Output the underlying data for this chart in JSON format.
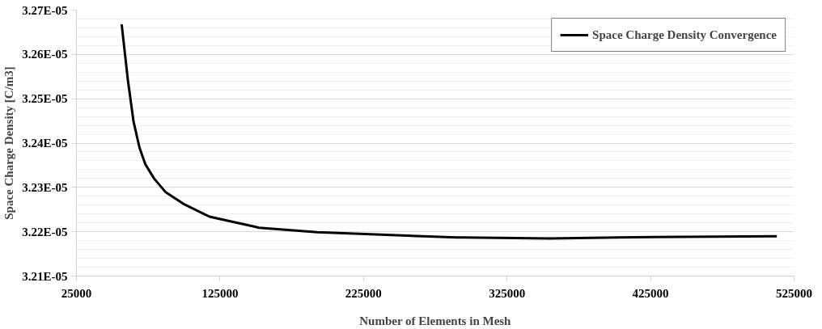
{
  "chart_data": {
    "type": "line",
    "xlabel": "Number of Elements in Mesh",
    "ylabel": "Space Charge Density [C/m3]",
    "series": [
      {
        "name": "Space Charge Density Convergence",
        "color": "#000000",
        "x": [
          56500,
          60800,
          64800,
          68900,
          73000,
          79100,
          87200,
          99400,
          117700,
          125800,
          148200,
          152200,
          192800,
          233500,
          290000,
          294500,
          355000,
          426600,
          513000
        ],
        "values": [
          3.2668e-05,
          3.2543e-05,
          3.2448e-05,
          3.239e-05,
          3.2352e-05,
          3.232e-05,
          3.2289e-05,
          3.2263e-05,
          3.2234e-05,
          3.2228e-05,
          3.2212e-05,
          3.2209e-05,
          3.2199e-05,
          3.2194e-05,
          3.2187e-05,
          3.2187e-05,
          3.2185e-05,
          3.2188e-05,
          3.219e-05
        ]
      }
    ],
    "xlim": [
      25000,
      525000
    ],
    "xticks": [
      25000,
      125000,
      225000,
      325000,
      425000,
      525000
    ],
    "ylim": [
      3.21e-05,
      3.27e-05
    ],
    "yticks": [
      {
        "value": 3.21e-05,
        "label": "3.21E-05"
      },
      {
        "value": 3.22e-05,
        "label": "3.22E-05"
      },
      {
        "value": 3.23e-05,
        "label": "3.23E-05"
      },
      {
        "value": 3.24e-05,
        "label": "3.24E-05"
      },
      {
        "value": 3.25e-05,
        "label": "3.25E-05"
      },
      {
        "value": 3.26e-05,
        "label": "3.26E-05"
      },
      {
        "value": 3.27e-05,
        "label": "3.27E-05"
      }
    ],
    "grid": true,
    "legend": "top right",
    "marker": "none",
    "line_style": "solid"
  }
}
